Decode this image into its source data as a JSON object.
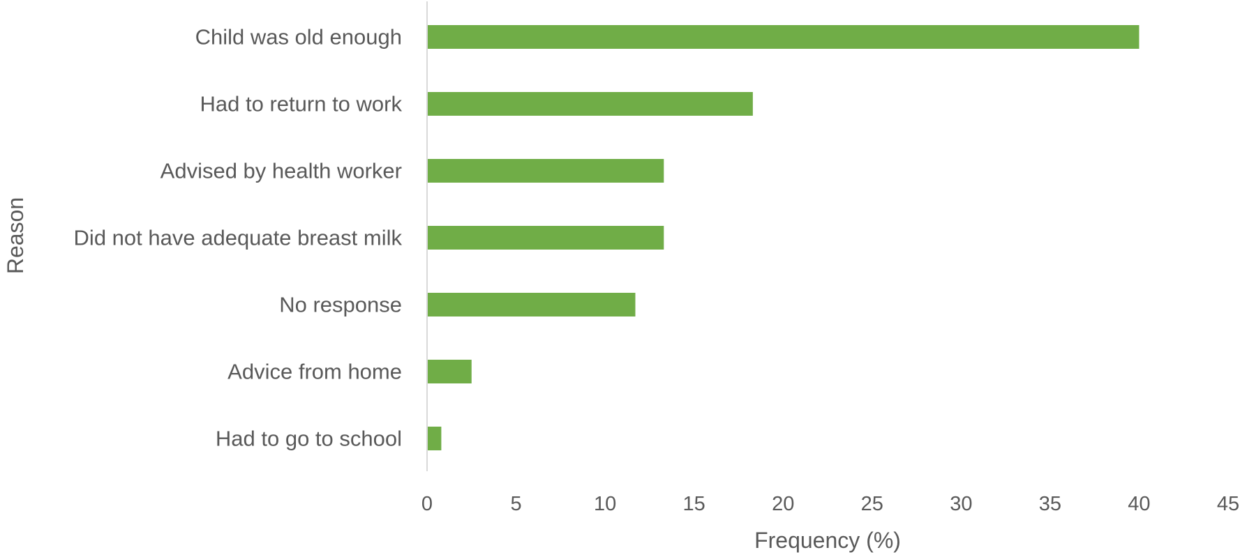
{
  "chart_data": {
    "type": "bar",
    "orientation": "horizontal",
    "categories": [
      "Child was old enough",
      "Had to return to work",
      "Advised by health worker",
      "Did not have adequate breast milk",
      "No response",
      "Advice from home",
      "Had to go to school"
    ],
    "values": [
      40.0,
      18.3,
      13.3,
      13.3,
      11.7,
      2.5,
      0.8
    ],
    "xlabel": "Frequency (%)",
    "ylabel": "Reason",
    "xlim": [
      0,
      45
    ],
    "xticks": [
      0,
      5,
      10,
      15,
      20,
      25,
      30,
      35,
      40,
      45
    ],
    "grid": false,
    "legend": "none",
    "bar_color": "#70AD47",
    "axis_color": "#D9D9D9",
    "text_color": "#595959"
  }
}
